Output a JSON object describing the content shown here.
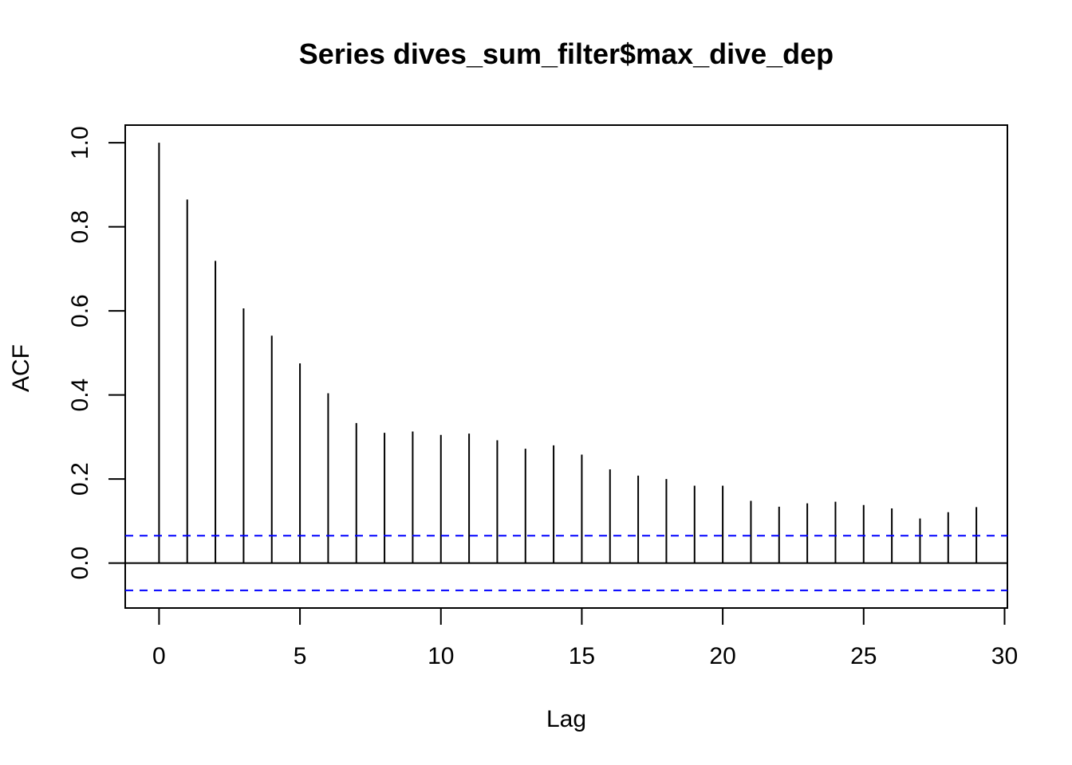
{
  "chart_data": {
    "type": "bar",
    "title": "Series  dives_sum_filter$max_dive_dep",
    "xlabel": "Lag",
    "ylabel": "ACF",
    "xlim": [
      -1.2,
      30.1
    ],
    "ylim": [
      -0.107,
      1.042
    ],
    "xticks": [
      0,
      5,
      10,
      15,
      20,
      25,
      30
    ],
    "yticks": [
      0.0,
      0.2,
      0.4,
      0.6,
      0.8,
      1.0
    ],
    "xtick_labels": [
      "0",
      "5",
      "10",
      "15",
      "20",
      "25",
      "30"
    ],
    "ytick_labels": [
      "0.0",
      "0.2",
      "0.4",
      "0.6",
      "0.8",
      "1.0"
    ],
    "grid": false,
    "lags": [
      0,
      1,
      2,
      3,
      4,
      5,
      6,
      7,
      8,
      9,
      10,
      11,
      12,
      13,
      14,
      15,
      16,
      17,
      18,
      19,
      20,
      21,
      22,
      23,
      24,
      25,
      26,
      27,
      28,
      29
    ],
    "acf": [
      1.0,
      0.865,
      0.719,
      0.606,
      0.541,
      0.475,
      0.404,
      0.333,
      0.31,
      0.313,
      0.305,
      0.308,
      0.292,
      0.272,
      0.28,
      0.258,
      0.223,
      0.208,
      0.2,
      0.184,
      0.184,
      0.148,
      0.134,
      0.142,
      0.146,
      0.138,
      0.13,
      0.106,
      0.121,
      0.133
    ],
    "confidence_bound": 0.065,
    "bar_color": "#000000",
    "ci_color": "#0000ff"
  }
}
